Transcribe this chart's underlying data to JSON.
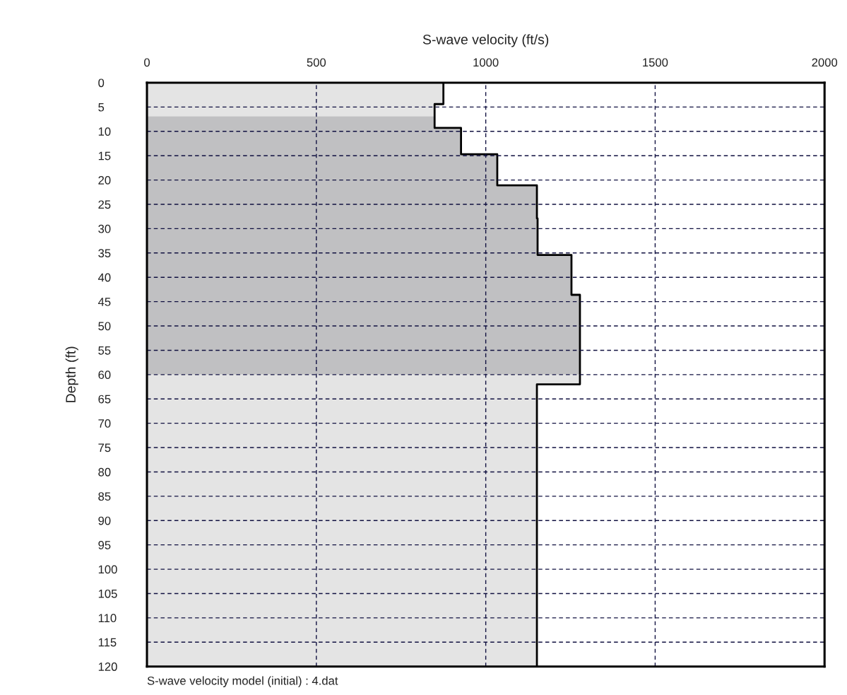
{
  "chart_data": {
    "type": "area",
    "orientation": "horizontal",
    "xlabel": "S-wave velocity (ft/s)",
    "ylabel": "Depth (ft)",
    "annotations": [
      "S-wave velocity model (initial) : 4.dat"
    ],
    "series": [
      {
        "color": "#e4e4e4",
        "x": [
          0,
          4.4,
          6.9
        ],
        "values": [
          875,
          849,
          849
        ]
      },
      {
        "color": "#c0c0c2",
        "x": [
          6.9,
          9.3,
          14.7,
          21.1,
          27.9,
          35.4,
          43.6,
          60
        ],
        "values": [
          849,
          927,
          1034,
          1151,
          1153,
          1253,
          1278,
          1278
        ]
      },
      {
        "color": "#e4e4e4",
        "x": [
          60,
          62,
          120
        ],
        "values": [
          1278,
          1151,
          1151
        ]
      },
      {
        "type": "step",
        "color": "#000000",
        "x": [
          0,
          4.4,
          9.3,
          14.7,
          21.1,
          27.9,
          35.4,
          43.6,
          62,
          120
        ],
        "values": [
          875,
          849,
          927,
          1034,
          1151,
          1153,
          1253,
          1278,
          1151,
          1151
        ]
      }
    ],
    "xlim": [
      0,
      2000
    ],
    "xticks": [
      0,
      500,
      1000,
      1500,
      2000
    ],
    "ylim": [
      120,
      0
    ],
    "yticks": [
      0,
      5,
      10,
      15,
      20,
      25,
      30,
      35,
      40,
      45,
      50,
      55,
      60,
      65,
      70,
      75,
      80,
      85,
      90,
      95,
      100,
      105,
      110,
      115,
      120
    ],
    "grid": true,
    "line_style": "solid",
    "marker": "none"
  }
}
